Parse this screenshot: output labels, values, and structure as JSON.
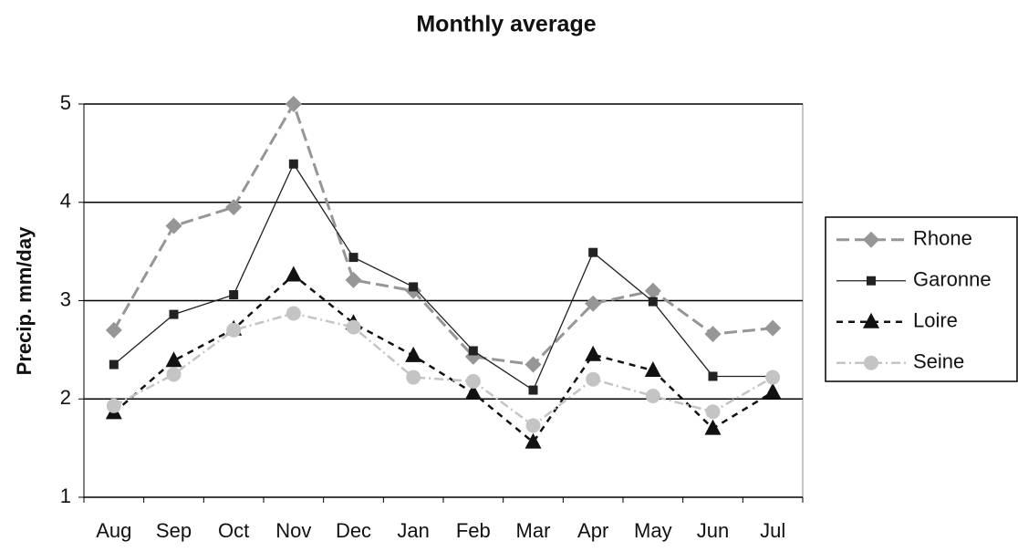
{
  "chart_data": {
    "type": "line",
    "title": "Monthly average",
    "y_label": "Precip. mm/day",
    "categories": [
      "Aug",
      "Sep",
      "Oct",
      "Nov",
      "Dec",
      "Jan",
      "Feb",
      "Mar",
      "Apr",
      "May",
      "Jun",
      "Jul"
    ],
    "series": [
      {
        "name": "Rhone",
        "color": "#969696",
        "dash": "14 6",
        "width": 3,
        "marker": "diamond",
        "values": [
          2.7,
          3.76,
          3.95,
          5.0,
          3.21,
          3.1,
          2.43,
          2.35,
          2.97,
          3.1,
          2.66,
          2.72
        ]
      },
      {
        "name": "Garonne",
        "color": "#222222",
        "dash": "",
        "width": 1.3,
        "marker": "square",
        "values": [
          2.35,
          2.86,
          3.06,
          4.39,
          3.44,
          3.14,
          2.49,
          2.09,
          3.49,
          2.99,
          2.23,
          2.23
        ]
      },
      {
        "name": "Loire",
        "color": "#111111",
        "dash": "7 6",
        "width": 2.5,
        "marker": "triangle",
        "values": [
          1.86,
          2.39,
          2.71,
          3.26,
          2.77,
          2.44,
          2.06,
          1.56,
          2.45,
          2.29,
          1.7,
          2.07
        ]
      },
      {
        "name": "Seine",
        "color": "#c4c4c4",
        "dash": "10 4 2 4",
        "width": 2.5,
        "marker": "circle",
        "values": [
          1.93,
          2.25,
          2.7,
          2.87,
          2.73,
          2.22,
          2.18,
          1.73,
          2.2,
          2.03,
          1.87,
          2.22
        ]
      }
    ],
    "ylim": [
      1,
      5
    ],
    "yticks": [
      1,
      2,
      3,
      4,
      5
    ],
    "grid": true,
    "legend": "right"
  }
}
